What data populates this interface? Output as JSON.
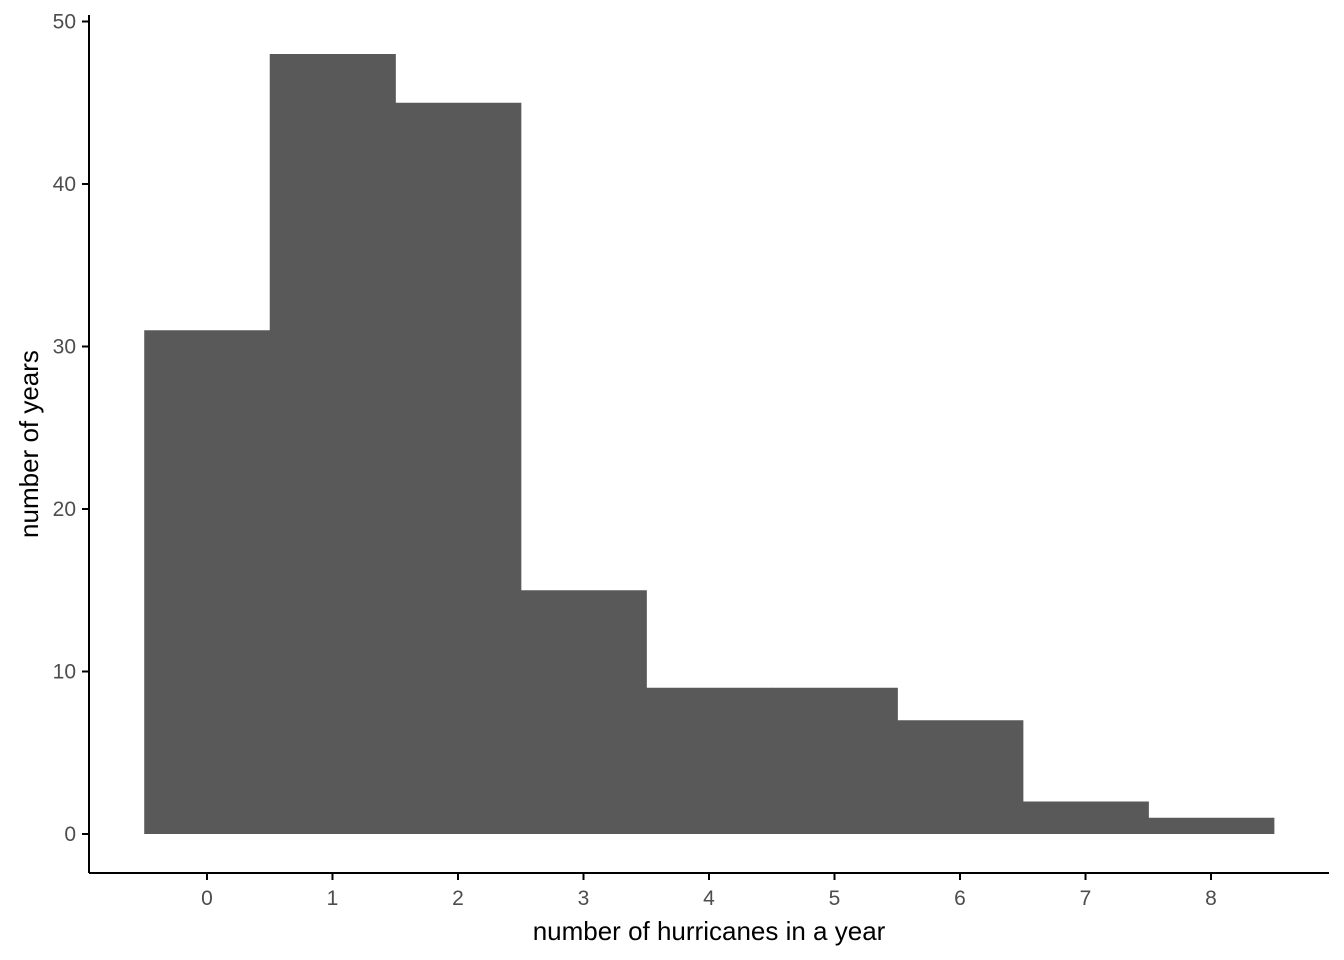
{
  "chart_data": {
    "type": "bar",
    "subtype": "histogram",
    "title": "",
    "xlabel": "number of hurricanes in a year",
    "ylabel": "number of years",
    "categories": [
      "0",
      "1",
      "2",
      "3",
      "4",
      "5",
      "6",
      "7",
      "8"
    ],
    "x": [
      0,
      1,
      2,
      3,
      4,
      5,
      6,
      7,
      8
    ],
    "values": [
      31,
      48,
      45,
      15,
      9,
      9,
      7,
      2,
      1
    ],
    "bin_width": 1,
    "xlim": [
      -0.94,
      8.94
    ],
    "ylim": [
      -2.4,
      50.4
    ],
    "x_ticks": [
      0,
      1,
      2,
      3,
      4,
      5,
      6,
      7,
      8
    ],
    "y_ticks": [
      0,
      10,
      20,
      30,
      40,
      50
    ],
    "grid": false,
    "legend": "none",
    "colors": {
      "bar": "#595959",
      "axis": "#000000",
      "tick_label": "#4d4d4d",
      "background": "#ffffff"
    }
  }
}
